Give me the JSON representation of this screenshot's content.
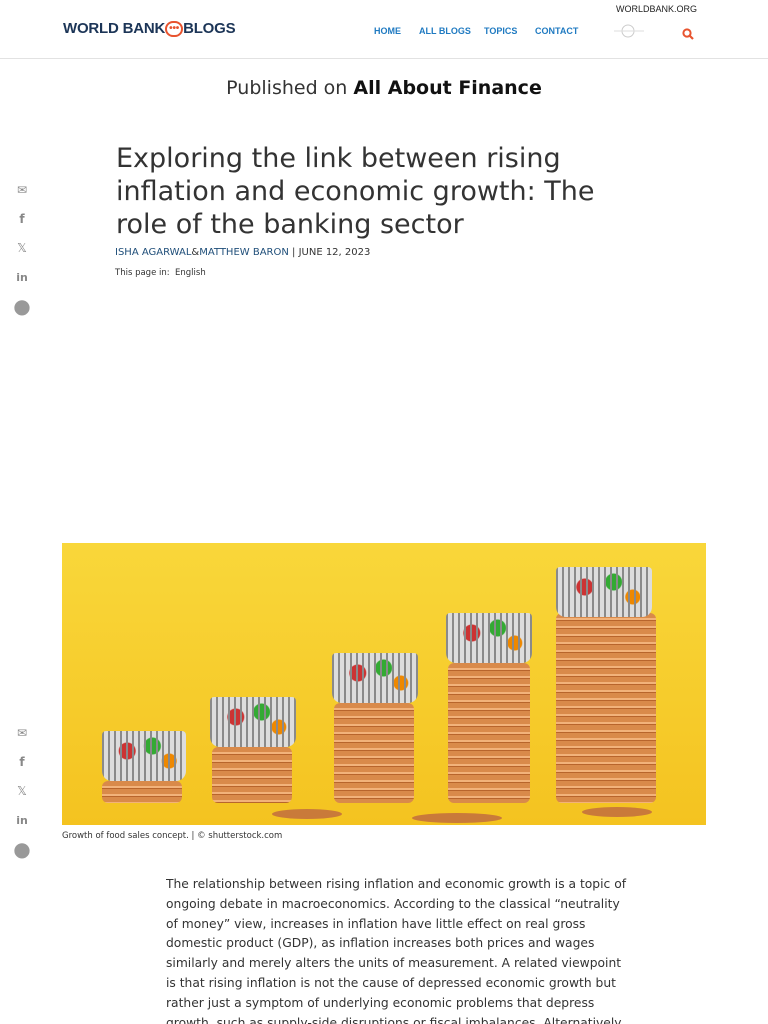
{
  "header": {
    "logo_left": "WORLD BANK",
    "logo_dots": "•••",
    "logo_right": "BLOGS",
    "nav": [
      "HOME",
      "ALL BLOGS",
      "TOPICS",
      "CONTACT"
    ],
    "worldbank_link": "WORLDBANK.ORG",
    "accent": "#e8542f",
    "nav_color": "#1f7ac1"
  },
  "published": {
    "prefix": "Published on",
    "blog": "All About Finance"
  },
  "article": {
    "title": "Exploring the link between rising inflation and economic growth: The role of the banking sector",
    "author1": "ISHA AGARWAL",
    "amp": "&",
    "author2": "MATTHEW BARON",
    "sep": " | ",
    "date": "JUNE 12, 2023",
    "lang_label": "This page in:",
    "lang": "English",
    "caption": "Growth of food sales concept. | © shutterstock.com",
    "body": "The relationship between rising inflation and economic growth is a topic of ongoing debate in macroeconomics. According to the classical “neutrality of money” view, increases in inflation have little effect on real gross domestic product (GDP), as inflation increases both prices and wages similarly and merely alters the units of measurement. A related viewpoint is that rising inflation is not the cause of depressed economic growth but rather just a symptom of underlying economic problems that depress growth, such as supply-side disruptions or fiscal imbalances. Alternatively, some macroeconomic theories"
  },
  "share_icons": [
    "email-icon",
    "facebook-icon",
    "x-icon",
    "linkedin-icon",
    "comment-icon"
  ]
}
